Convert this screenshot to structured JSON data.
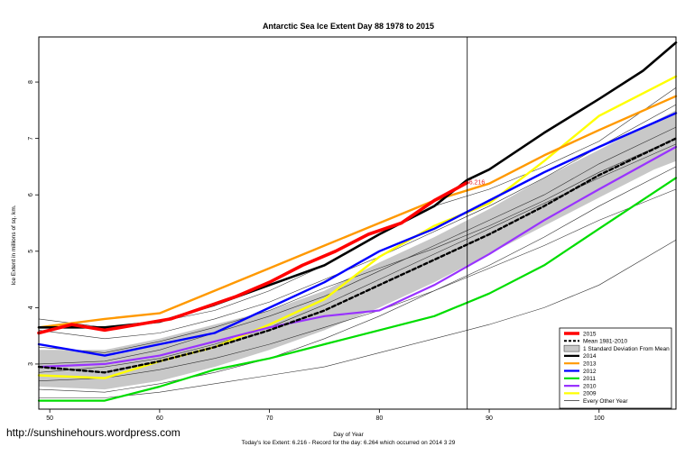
{
  "watermark": "http://sunshinehours.wordpress.com",
  "chart_data": {
    "type": "line",
    "title": "Antarctic Sea Ice Extent Day 88 1978 to 2015",
    "xlabel": "Day of Year",
    "ylabel": "Ice Extent in millions of sq. km.",
    "footer": "Today's Ice Extent: 6.216  - Record for the day: 6.264 which occurred on 2014 3 29",
    "xlim": [
      49,
      107
    ],
    "ylim": [
      2.2,
      8.8
    ],
    "xticks": [
      50,
      60,
      70,
      80,
      90,
      100
    ],
    "yticks": [
      3,
      4,
      5,
      6,
      7,
      8
    ],
    "marker_day": 88,
    "annotation": {
      "x": 88,
      "y": 6.216,
      "label": "6.216"
    },
    "band": {
      "name": "1 Standard Deviation From Mean",
      "x": [
        49,
        55,
        60,
        65,
        70,
        75,
        80,
        85,
        88,
        90,
        95,
        100,
        105,
        107
      ],
      "upper": [
        3.25,
        3.25,
        3.45,
        3.7,
        3.95,
        4.3,
        4.8,
        5.25,
        5.55,
        5.75,
        6.3,
        6.8,
        7.3,
        7.5
      ],
      "lower": [
        2.6,
        2.55,
        2.7,
        2.95,
        3.25,
        3.6,
        4.0,
        4.45,
        4.75,
        4.95,
        5.45,
        5.95,
        6.45,
        6.6
      ]
    },
    "other_years": [
      {
        "x": [
          49,
          55,
          60,
          65,
          70,
          75,
          80,
          85,
          90,
          95,
          100,
          107
        ],
        "values": [
          2.4,
          2.4,
          2.5,
          2.65,
          2.8,
          2.95,
          3.2,
          3.45,
          3.7,
          4.0,
          4.4,
          5.2
        ]
      },
      {
        "x": [
          49,
          55,
          60,
          65,
          70,
          75,
          80,
          85,
          90,
          95,
          100,
          107
        ],
        "values": [
          2.7,
          2.75,
          2.9,
          3.1,
          3.35,
          3.65,
          3.95,
          4.3,
          4.7,
          5.1,
          5.55,
          6.1
        ]
      },
      {
        "x": [
          49,
          55,
          60,
          65,
          70,
          75,
          80,
          85,
          90,
          95,
          100,
          107
        ],
        "values": [
          3.0,
          3.05,
          3.25,
          3.55,
          3.85,
          4.2,
          4.65,
          5.1,
          5.55,
          6.0,
          6.55,
          7.2
        ]
      },
      {
        "x": [
          49,
          55,
          60,
          65,
          70,
          75,
          80,
          85,
          90,
          95,
          100,
          107
        ],
        "values": [
          3.6,
          3.45,
          3.55,
          3.8,
          4.1,
          4.5,
          4.9,
          5.35,
          5.8,
          6.3,
          6.85,
          7.6
        ]
      },
      {
        "x": [
          49,
          55,
          60,
          65,
          70,
          75,
          80,
          85,
          90,
          95,
          100,
          107
        ],
        "values": [
          2.55,
          2.5,
          2.65,
          2.85,
          3.1,
          3.45,
          3.85,
          4.3,
          4.75,
          5.25,
          5.8,
          6.5
        ]
      },
      {
        "x": [
          49,
          55,
          60,
          65,
          70,
          75,
          80,
          85,
          90,
          95,
          100,
          107
        ],
        "values": [
          3.3,
          3.2,
          3.4,
          3.65,
          3.95,
          4.35,
          4.7,
          5.05,
          5.45,
          5.9,
          6.4,
          7.0
        ]
      },
      {
        "x": [
          49,
          55,
          60,
          65,
          70,
          75,
          80,
          85,
          90,
          95,
          100,
          107
        ],
        "values": [
          2.85,
          2.95,
          3.1,
          3.35,
          3.65,
          4.05,
          4.5,
          4.95,
          5.4,
          5.85,
          6.3,
          6.9
        ]
      },
      {
        "x": [
          49,
          55,
          60,
          65,
          70,
          75,
          80,
          85,
          90,
          95,
          100,
          107
        ],
        "values": [
          3.8,
          3.65,
          3.75,
          3.95,
          4.3,
          4.75,
          5.3,
          5.8,
          6.1,
          6.5,
          6.95,
          7.9
        ]
      }
    ],
    "series": [
      {
        "name": "2015",
        "color": "#ff0000",
        "width": 3.6,
        "x": [
          49,
          52,
          55,
          58,
          61,
          64,
          67,
          70,
          73,
          76,
          79,
          82,
          85,
          88
        ],
        "values": [
          3.55,
          3.7,
          3.6,
          3.7,
          3.8,
          4.0,
          4.2,
          4.45,
          4.75,
          5.0,
          5.3,
          5.5,
          5.9,
          6.216
        ]
      },
      {
        "name": "Mean 1981-2010",
        "color": "#000000",
        "width": 2.4,
        "dash": "4,3",
        "x": [
          49,
          55,
          60,
          65,
          70,
          75,
          80,
          85,
          90,
          95,
          100,
          107
        ],
        "values": [
          2.95,
          2.85,
          3.05,
          3.3,
          3.6,
          3.95,
          4.4,
          4.85,
          5.3,
          5.8,
          6.35,
          7.0
        ]
      },
      {
        "name": "2014",
        "color": "#000000",
        "width": 2.6,
        "x": [
          49,
          55,
          60,
          65,
          70,
          75,
          80,
          85,
          88,
          90,
          95,
          100,
          104,
          107
        ],
        "values": [
          3.65,
          3.65,
          3.75,
          4.05,
          4.4,
          4.75,
          5.3,
          5.8,
          6.264,
          6.45,
          7.1,
          7.7,
          8.2,
          8.7
        ]
      },
      {
        "name": "2013",
        "color": "#ff9900",
        "width": 2.4,
        "x": [
          49,
          55,
          60,
          65,
          70,
          75,
          80,
          85,
          90,
          95,
          100,
          107
        ],
        "values": [
          3.65,
          3.8,
          3.9,
          4.3,
          4.7,
          5.1,
          5.5,
          5.9,
          6.2,
          6.7,
          7.15,
          7.75
        ]
      },
      {
        "name": "2012",
        "color": "#0000ff",
        "width": 2.4,
        "x": [
          49,
          55,
          60,
          65,
          70,
          75,
          80,
          85,
          90,
          95,
          100,
          107
        ],
        "values": [
          3.35,
          3.15,
          3.35,
          3.55,
          4.0,
          4.45,
          5.0,
          5.4,
          5.9,
          6.4,
          6.85,
          7.45
        ]
      },
      {
        "name": "2011",
        "color": "#00dd00",
        "width": 2.2,
        "x": [
          49,
          55,
          60,
          65,
          70,
          75,
          80,
          85,
          90,
          95,
          100,
          107
        ],
        "values": [
          2.35,
          2.35,
          2.6,
          2.9,
          3.1,
          3.35,
          3.6,
          3.85,
          4.25,
          4.75,
          5.4,
          6.3
        ]
      },
      {
        "name": "2010",
        "color": "#9933ff",
        "width": 2.2,
        "x": [
          49,
          55,
          60,
          65,
          70,
          75,
          80,
          85,
          90,
          95,
          100,
          107
        ],
        "values": [
          2.95,
          3.0,
          3.15,
          3.4,
          3.65,
          3.85,
          3.95,
          4.4,
          4.95,
          5.55,
          6.1,
          6.85
        ]
      },
      {
        "name": "2009",
        "color": "#ffff00",
        "width": 2.4,
        "x": [
          49,
          55,
          60,
          65,
          70,
          75,
          80,
          85,
          90,
          95,
          100,
          107
        ],
        "values": [
          2.8,
          2.75,
          3.05,
          3.3,
          3.7,
          4.15,
          4.9,
          5.45,
          5.85,
          6.6,
          7.4,
          8.1
        ]
      }
    ],
    "legend": {
      "position": "bottom-right",
      "entries": [
        {
          "label": "2015",
          "color": "#ff0000",
          "style": "line-thick"
        },
        {
          "label": "Mean 1981-2010",
          "color": "#000000",
          "style": "dashed"
        },
        {
          "label": "1 Standard Deviation From Mean",
          "color": "#c8c8c8",
          "style": "box"
        },
        {
          "label": "2014",
          "color": "#000000",
          "style": "line"
        },
        {
          "label": "2013",
          "color": "#ff9900",
          "style": "line"
        },
        {
          "label": "2012",
          "color": "#0000ff",
          "style": "line"
        },
        {
          "label": "2011",
          "color": "#00dd00",
          "style": "line"
        },
        {
          "label": "2010",
          "color": "#9933ff",
          "style": "line"
        },
        {
          "label": "2009",
          "color": "#ffff00",
          "style": "line"
        },
        {
          "label": "Every Other Year",
          "color": "#000000",
          "style": "thin"
        }
      ]
    }
  }
}
